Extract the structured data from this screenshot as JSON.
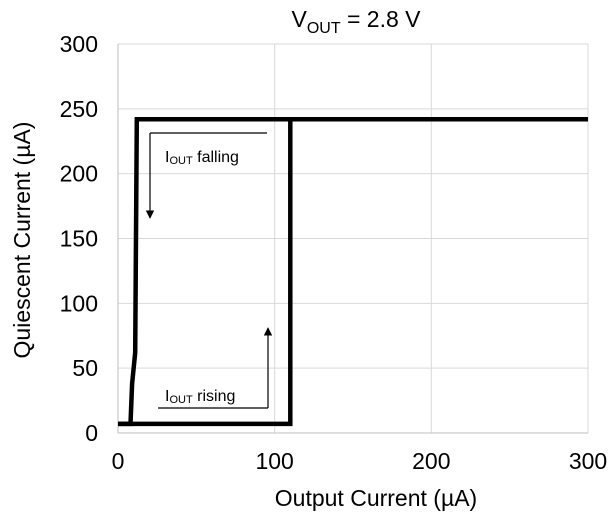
{
  "chart_data": {
    "type": "line",
    "title": {
      "main": "V",
      "sub": "OUT",
      "rest": " = 2.8 V"
    },
    "xlabel": "Output Current (µA)",
    "ylabel": "Quiescent Current (µA)",
    "xlim": [
      0,
      300
    ],
    "ylim": [
      0,
      300
    ],
    "xticks": [
      0,
      100,
      200,
      300
    ],
    "yticks": [
      0,
      50,
      100,
      150,
      200,
      250,
      300
    ],
    "grid": true,
    "series": [
      {
        "values": [
          {
            "x": 0,
            "y": 7
          },
          {
            "x": 110,
            "y": 7
          },
          {
            "x": 110,
            "y": 242
          },
          {
            "x": 300,
            "y": 242
          }
        ]
      },
      {
        "values": [
          {
            "x": 300,
            "y": 242
          },
          {
            "x": 12,
            "y": 242
          },
          {
            "x": 11,
            "y": 62
          },
          {
            "x": 9,
            "y": 38
          },
          {
            "x": 8,
            "y": 7
          },
          {
            "x": 0,
            "y": 7
          }
        ]
      }
    ],
    "annotations": [
      {
        "main": "I",
        "sub": "OUT",
        "rest": " falling",
        "direction": "down"
      },
      {
        "main": "I",
        "sub": "OUT",
        "rest": " rising",
        "direction": "up"
      }
    ]
  }
}
